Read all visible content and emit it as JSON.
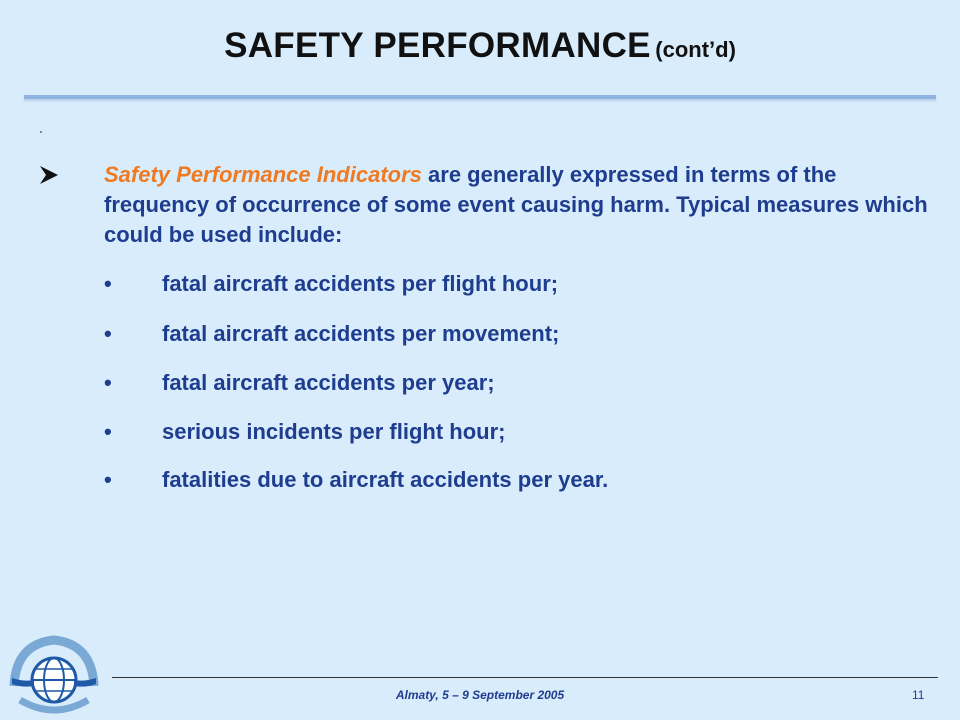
{
  "slide": {
    "title_main": "SAFETY PERFORMANCE",
    "title_sub": "(cont’d)"
  },
  "intro": {
    "emphasis": "Safety Performance Indicators",
    "rest": " are generally expressed in terms of the frequency of occurrence of some event causing harm. Typical measures which could be used include:"
  },
  "bullet_glyph": "•",
  "bullets": [
    "fatal aircraft accidents per flight hour;",
    "fatal aircraft accidents per movement;",
    "fatal aircraft accidents per year;",
    "serious incidents per flight hour;",
    "fatalities due to aircraft accidents per year."
  ],
  "footer": {
    "event": "Almaty, 5 – 9 September 2005",
    "page_number": "11"
  },
  "icons": {
    "intro_marker": "arrow-bullet-icon",
    "logo": "icao-emblem-icon"
  },
  "colors": {
    "background": "#d9ecfb",
    "text": "#1e3d8f",
    "emphasis": "#ee7a22",
    "rule": "#8fb4e3"
  }
}
